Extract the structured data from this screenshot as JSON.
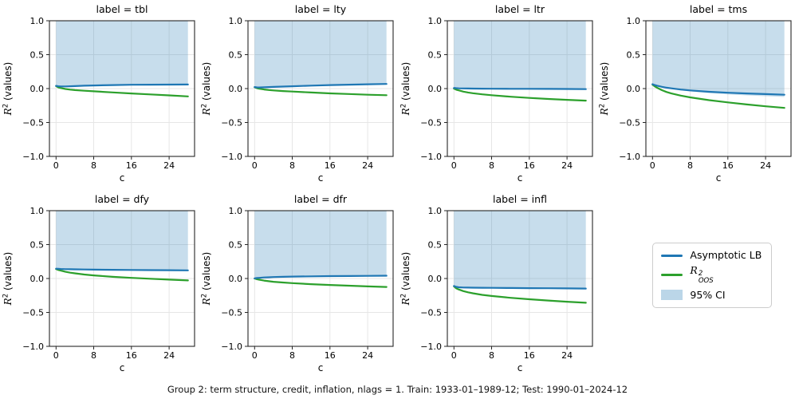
{
  "figure": {
    "caption": "Group 2: term structure, credit, inflation, nlags = 1. Train: 1933-01–1989-12; Test: 1990-01–2024-12"
  },
  "colors": {
    "asymptotic_lb": "#1f77b4",
    "r2_oos": "#2ca02c",
    "ci_fill": "#1f77b4",
    "ci_fill_opacity": 0.25,
    "grid": "#e6e6e6",
    "spine": "#262626",
    "tick_text": "#000000",
    "legend_border": "#cccccc"
  },
  "legend": {
    "items": [
      {
        "label": "Asymptotic LB",
        "swatch": "line",
        "color": "#1f77b4"
      },
      {
        "label": "R²OOS",
        "math": {
          "base": "R",
          "sup": "2",
          "sub": "OOS"
        },
        "swatch": "line",
        "color": "#2ca02c"
      },
      {
        "label": "95% CI",
        "swatch": "patch",
        "color": "#1f77b4"
      }
    ]
  },
  "axes": {
    "xlabel": "c",
    "ylabel": "R² (values)",
    "ylabel_math": {
      "base": "R",
      "sup": "2",
      "rest": " (values)"
    },
    "xlim": [
      -1.4,
      29.4
    ],
    "ylim": [
      -1.0,
      1.0
    ],
    "xticks": {
      "values": [
        0,
        8,
        16,
        24
      ],
      "labels": [
        "0",
        "8",
        "16",
        "24"
      ]
    },
    "yticks": {
      "values": [
        1.0,
        0.5,
        0.0,
        -0.5,
        -1.0
      ],
      "labels": [
        "1.0",
        "0.5",
        "0.0",
        "−0.5",
        "−1.0"
      ]
    },
    "grid": true,
    "ci_x_range": [
      0,
      28
    ]
  },
  "chart_data": {
    "type": "line",
    "series_names": [
      "Asymptotic LB",
      "R²OOS",
      "95% CI"
    ],
    "x": [
      0,
      0.5,
      1,
      2,
      3,
      4,
      6,
      8,
      12,
      16,
      20,
      24,
      28
    ],
    "subplots": [
      {
        "id": "tbl",
        "title": "label = tbl",
        "asymptotic_lb": [
          0.04,
          0.034,
          0.032,
          0.032,
          0.034,
          0.037,
          0.042,
          0.046,
          0.052,
          0.056,
          0.058,
          0.059,
          0.06
        ],
        "r2_oos": [
          0.038,
          0.018,
          0.008,
          -0.006,
          -0.015,
          -0.022,
          -0.032,
          -0.04,
          -0.056,
          -0.072,
          -0.086,
          -0.1,
          -0.115
        ]
      },
      {
        "id": "lty",
        "title": "label = lty",
        "asymptotic_lb": [
          0.022,
          0.018,
          0.017,
          0.019,
          0.022,
          0.025,
          0.03,
          0.034,
          0.044,
          0.052,
          0.058,
          0.063,
          0.068
        ],
        "r2_oos": [
          0.02,
          0.006,
          -0.002,
          -0.013,
          -0.021,
          -0.027,
          -0.037,
          -0.044,
          -0.058,
          -0.07,
          -0.08,
          -0.09,
          -0.098
        ]
      },
      {
        "id": "ltr",
        "title": "label = ltr",
        "asymptotic_lb": [
          0.01,
          0.006,
          0.004,
          0.002,
          0.001,
          0.0,
          -0.001,
          -0.002,
          -0.003,
          -0.004,
          -0.005,
          -0.006,
          -0.008
        ],
        "r2_oos": [
          0.0,
          -0.016,
          -0.026,
          -0.045,
          -0.058,
          -0.068,
          -0.085,
          -0.098,
          -0.12,
          -0.138,
          -0.153,
          -0.166,
          -0.178
        ]
      },
      {
        "id": "tms",
        "title": "label = tms",
        "asymptotic_lb": [
          0.065,
          0.052,
          0.042,
          0.026,
          0.013,
          0.003,
          -0.014,
          -0.027,
          -0.047,
          -0.061,
          -0.072,
          -0.081,
          -0.09
        ],
        "r2_oos": [
          0.058,
          0.032,
          0.012,
          -0.024,
          -0.051,
          -0.072,
          -0.104,
          -0.129,
          -0.17,
          -0.204,
          -0.234,
          -0.261,
          -0.285
        ],
        "ci_lower": [
          0.065,
          0.05,
          0.038,
          0.02,
          0.005,
          -0.006,
          -0.026,
          -0.041,
          -0.066,
          -0.085,
          -0.1,
          -0.112,
          -0.124
        ]
      },
      {
        "id": "dfy",
        "title": "label = dfy",
        "asymptotic_lb": [
          0.145,
          0.142,
          0.14,
          0.138,
          0.136,
          0.135,
          0.133,
          0.131,
          0.128,
          0.126,
          0.124,
          0.122,
          0.12
        ],
        "r2_oos": [
          0.14,
          0.126,
          0.116,
          0.099,
          0.086,
          0.076,
          0.059,
          0.046,
          0.025,
          0.009,
          -0.004,
          -0.016,
          -0.028
        ]
      },
      {
        "id": "dfr",
        "title": "label = dfr",
        "asymptotic_lb": [
          0.002,
          0.007,
          0.01,
          0.015,
          0.018,
          0.021,
          0.025,
          0.028,
          0.032,
          0.035,
          0.037,
          0.039,
          0.041
        ],
        "r2_oos": [
          0.0,
          -0.01,
          -0.018,
          -0.031,
          -0.04,
          -0.048,
          -0.059,
          -0.068,
          -0.083,
          -0.095,
          -0.106,
          -0.116,
          -0.125
        ]
      },
      {
        "id": "infl",
        "title": "label = infl",
        "asymptotic_lb": [
          -0.11,
          -0.124,
          -0.129,
          -0.133,
          -0.134,
          -0.135,
          -0.137,
          -0.138,
          -0.14,
          -0.142,
          -0.144,
          -0.146,
          -0.148
        ],
        "r2_oos": [
          -0.115,
          -0.146,
          -0.161,
          -0.186,
          -0.204,
          -0.218,
          -0.241,
          -0.258,
          -0.285,
          -0.306,
          -0.325,
          -0.342,
          -0.358
        ]
      }
    ]
  }
}
